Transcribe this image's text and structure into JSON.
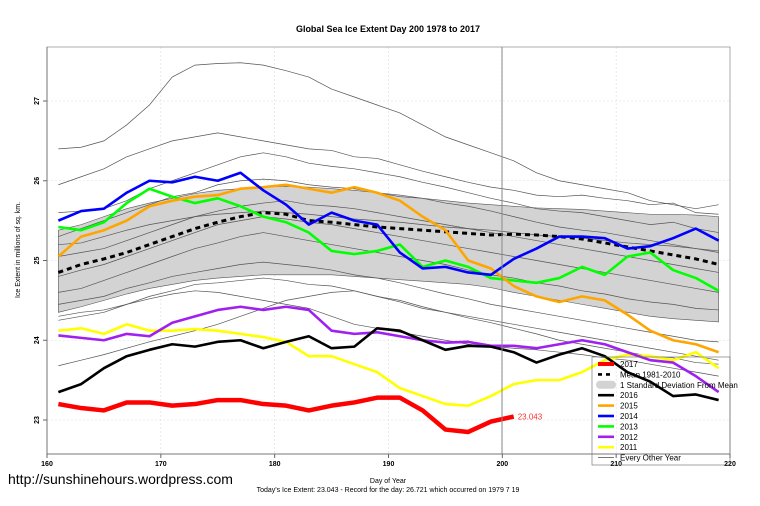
{
  "chart_data": {
    "type": "line",
    "title": "Global Sea Ice Extent Day 200 1978 to 2017",
    "xlabel": "Day of Year",
    "ylabel": "Ice Extent in millions of sq. km.",
    "subtitle": "Today's Ice Extent: 23.043  - Record for the day: 26.721 which occurred on 1979 7 19",
    "watermark": "http://sunshinehours.wordpress.com",
    "xlim": [
      160,
      220
    ],
    "ylim": [
      22.6,
      27.7
    ],
    "x_ticks": [
      "160",
      "170",
      "180",
      "190",
      "200",
      "210",
      "220"
    ],
    "y_ticks": [
      "23",
      "24",
      "25",
      "26",
      "27"
    ],
    "grid": true,
    "current_day_marker": 200,
    "last_value_label": "23.043",
    "legend_position": "bottom-right",
    "legend": [
      {
        "label": "2017",
        "color": "#ff0000",
        "style": "thick"
      },
      {
        "label": "Mean 1981-2010",
        "color": "#000000",
        "style": "dashed"
      },
      {
        "label": "1 Standard Deviation From Mean",
        "color": "#d3d3d3",
        "style": "band"
      },
      {
        "label": "2016",
        "color": "#000000",
        "style": "line"
      },
      {
        "label": "2015",
        "color": "#ffa500",
        "style": "line"
      },
      {
        "label": "2014",
        "color": "#0000ff",
        "style": "line"
      },
      {
        "label": "2013",
        "color": "#00ff00",
        "style": "line"
      },
      {
        "label": "2012",
        "color": "#a020f0",
        "style": "line"
      },
      {
        "label": "2011",
        "color": "#ffff00",
        "style": "line"
      },
      {
        "label": "Every Other Year",
        "color": "#555555",
        "style": "thin"
      }
    ],
    "x": [
      161,
      163,
      165,
      167,
      169,
      171,
      173,
      175,
      177,
      179,
      181,
      183,
      185,
      187,
      189,
      191,
      193,
      195,
      197,
      199,
      201,
      203,
      205,
      207,
      209,
      211,
      213,
      215,
      217,
      219
    ],
    "std_band": {
      "upper": [
        25.38,
        25.45,
        25.55,
        25.65,
        25.72,
        25.78,
        25.84,
        25.88,
        25.9,
        25.92,
        25.93,
        25.92,
        25.9,
        25.88,
        25.85,
        25.82,
        25.78,
        25.75,
        25.72,
        25.7,
        25.68,
        25.66,
        25.65,
        25.64,
        25.62,
        25.6,
        25.58,
        25.58,
        25.57,
        25.55
      ],
      "lower": [
        24.35,
        24.42,
        24.5,
        24.58,
        24.65,
        24.7,
        24.75,
        24.78,
        24.8,
        24.82,
        24.82,
        24.82,
        24.82,
        24.8,
        24.78,
        24.76,
        24.74,
        24.72,
        24.7,
        24.66,
        24.6,
        24.55,
        24.5,
        24.45,
        24.4,
        24.35,
        24.3,
        24.27,
        24.25,
        24.23
      ]
    },
    "series": [
      {
        "name": "Mean 1981-2010",
        "color": "#000000",
        "dash": true,
        "values": [
          24.85,
          24.95,
          25.02,
          25.1,
          25.2,
          25.3,
          25.4,
          25.48,
          25.55,
          25.6,
          25.58,
          25.5,
          25.48,
          25.45,
          25.42,
          25.4,
          25.38,
          25.36,
          25.34,
          25.32,
          25.33,
          25.32,
          25.3,
          25.27,
          25.22,
          25.17,
          25.12,
          25.07,
          25.02,
          24.95
        ]
      },
      {
        "name": "2011",
        "color": "#ffff00",
        "values": [
          24.12,
          24.15,
          24.08,
          24.2,
          24.12,
          24.12,
          24.14,
          24.12,
          24.08,
          24.04,
          23.98,
          23.8,
          23.8,
          23.7,
          23.6,
          23.4,
          23.3,
          23.2,
          23.18,
          23.3,
          23.45,
          23.5,
          23.5,
          23.6,
          23.75,
          23.82,
          23.8,
          23.75,
          23.85,
          23.65
        ]
      },
      {
        "name": "2012",
        "color": "#a020f0",
        "values": [
          24.06,
          24.03,
          24.0,
          24.08,
          24.05,
          24.22,
          24.3,
          24.38,
          24.42,
          24.38,
          24.42,
          24.38,
          24.12,
          24.08,
          24.1,
          24.05,
          24.0,
          23.97,
          23.98,
          23.93,
          23.93,
          23.9,
          23.95,
          24.0,
          23.95,
          23.85,
          23.75,
          23.72,
          23.55,
          23.35
        ]
      },
      {
        "name": "2013",
        "color": "#00ff00",
        "values": [
          25.42,
          25.38,
          25.48,
          25.72,
          25.9,
          25.8,
          25.72,
          25.78,
          25.68,
          25.55,
          25.48,
          25.35,
          25.12,
          25.08,
          25.12,
          25.2,
          24.92,
          25.0,
          24.92,
          24.78,
          24.75,
          24.72,
          24.78,
          24.92,
          24.82,
          25.05,
          25.1,
          24.88,
          24.78,
          24.62
        ]
      },
      {
        "name": "2014",
        "color": "#0000ff",
        "values": [
          25.5,
          25.62,
          25.65,
          25.85,
          26.0,
          25.98,
          26.05,
          26.0,
          26.1,
          25.88,
          25.7,
          25.45,
          25.6,
          25.5,
          25.45,
          25.1,
          24.9,
          24.92,
          24.85,
          24.82,
          25.02,
          25.15,
          25.3,
          25.3,
          25.28,
          25.15,
          25.18,
          25.28,
          25.4,
          25.25
        ]
      },
      {
        "name": "2015",
        "color": "#ffa500",
        "values": [
          25.05,
          25.3,
          25.38,
          25.5,
          25.68,
          25.75,
          25.8,
          25.82,
          25.9,
          25.92,
          25.95,
          25.9,
          25.85,
          25.92,
          25.85,
          25.75,
          25.55,
          25.38,
          25.0,
          24.9,
          24.68,
          24.55,
          24.48,
          24.55,
          24.5,
          24.32,
          24.12,
          24.0,
          23.95,
          23.85
        ]
      },
      {
        "name": "2016",
        "color": "#000000",
        "values": [
          23.35,
          23.45,
          23.65,
          23.8,
          23.88,
          23.95,
          23.92,
          23.98,
          24.0,
          23.9,
          23.98,
          24.05,
          23.9,
          23.92,
          24.15,
          24.12,
          24.0,
          23.88,
          23.93,
          23.92,
          23.85,
          23.72,
          23.82,
          23.9,
          23.8,
          23.6,
          23.48,
          23.3,
          23.32,
          23.25
        ]
      },
      {
        "name": "2017",
        "color": "#ff0000",
        "thick": true,
        "values": [
          23.2,
          23.15,
          23.12,
          23.22,
          23.22,
          23.18,
          23.2,
          23.25,
          23.25,
          23.2,
          23.18,
          23.12,
          23.18,
          23.22,
          23.28,
          23.28,
          23.12,
          22.88,
          22.85,
          22.98,
          23.043,
          null,
          null,
          null,
          null,
          null,
          null,
          null,
          null,
          null
        ]
      },
      {
        "name": "Every Other Year (a)",
        "color": "#555555",
        "thin": true,
        "values": [
          26.4,
          26.42,
          26.5,
          26.7,
          26.95,
          27.3,
          27.45,
          27.47,
          27.48,
          27.45,
          27.38,
          27.3,
          27.15,
          27.05,
          26.95,
          26.85,
          26.7,
          26.55,
          26.45,
          26.35,
          26.25,
          26.1,
          26.0,
          25.95,
          25.9,
          25.85,
          25.75,
          25.7,
          25.65,
          25.7
        ]
      },
      {
        "name": "Every Other Year (b)",
        "color": "#555555",
        "thin": true,
        "values": [
          25.95,
          26.05,
          26.15,
          26.3,
          26.4,
          26.5,
          26.55,
          26.6,
          26.55,
          26.5,
          26.45,
          26.4,
          26.38,
          26.3,
          26.28,
          26.2,
          26.12,
          26.05,
          25.98,
          25.92,
          25.88,
          25.82,
          25.8,
          25.82,
          25.78,
          25.75,
          25.7,
          25.72,
          25.6,
          25.58
        ]
      },
      {
        "name": "Every Other Year (c)",
        "color": "#555555",
        "thin": true,
        "values": [
          25.6,
          25.62,
          25.65,
          25.75,
          25.9,
          26.0,
          26.1,
          26.2,
          26.3,
          26.35,
          26.3,
          26.22,
          26.18,
          26.15,
          26.1,
          26.05,
          25.98,
          25.92,
          25.85,
          25.78,
          25.72,
          25.65,
          25.62,
          25.6,
          25.55,
          25.5,
          25.45,
          25.48,
          25.4,
          25.35
        ]
      },
      {
        "name": "Every Other Year (d)",
        "color": "#555555",
        "thin": true,
        "values": [
          25.3,
          25.4,
          25.5,
          25.6,
          25.7,
          25.8,
          25.85,
          25.95,
          26.0,
          26.02,
          26.0,
          25.95,
          25.92,
          25.9,
          25.85,
          25.8,
          25.78,
          25.72,
          25.68,
          25.62,
          25.55,
          25.48,
          25.42,
          25.38,
          25.35,
          25.3,
          25.25,
          25.2,
          25.15,
          25.1
        ]
      },
      {
        "name": "Every Other Year (e)",
        "color": "#555555",
        "thin": true,
        "values": [
          25.05,
          25.1,
          25.15,
          25.25,
          25.35,
          25.45,
          25.55,
          25.62,
          25.68,
          25.72,
          25.75,
          25.7,
          25.68,
          25.65,
          25.6,
          25.55,
          25.5,
          25.45,
          25.4,
          25.35,
          25.3,
          25.25,
          25.2,
          25.15,
          25.1,
          25.05,
          25.0,
          24.95,
          24.9,
          24.85
        ]
      },
      {
        "name": "Every Other Year (f)",
        "color": "#555555",
        "thin": true,
        "values": [
          24.8,
          24.88,
          24.95,
          25.05,
          25.15,
          25.25,
          25.35,
          25.45,
          25.5,
          25.55,
          25.52,
          25.48,
          25.45,
          25.4,
          25.35,
          25.3,
          25.25,
          25.2,
          25.15,
          25.1,
          25.05,
          25.0,
          24.95,
          24.9,
          24.85,
          24.8,
          24.75,
          24.7,
          24.65,
          24.6
        ]
      },
      {
        "name": "Every Other Year (g)",
        "color": "#555555",
        "thin": true,
        "values": [
          24.6,
          24.65,
          24.75,
          24.85,
          24.95,
          25.05,
          25.15,
          25.22,
          25.3,
          25.35,
          25.3,
          25.25,
          25.2,
          25.15,
          25.1,
          25.05,
          25.0,
          24.95,
          24.88,
          24.82,
          24.78,
          24.72,
          24.68,
          24.62,
          24.58,
          24.52,
          24.48,
          24.45,
          24.4,
          24.38
        ]
      },
      {
        "name": "Every Other Year (h)",
        "color": "#555555",
        "thin": true,
        "values": [
          24.45,
          24.5,
          24.55,
          24.65,
          24.72,
          24.8,
          24.85,
          24.9,
          24.95,
          24.98,
          24.95,
          24.92,
          24.88,
          24.82,
          24.78,
          24.72,
          24.65,
          24.58,
          24.52,
          24.45,
          24.4,
          24.35,
          24.3,
          24.25,
          24.2,
          24.15,
          24.1,
          24.05,
          24.0,
          23.98
        ]
      },
      {
        "name": "Every Other Year (i)",
        "color": "#555555",
        "thin": true,
        "values": [
          24.25,
          24.3,
          24.35,
          24.45,
          24.55,
          24.62,
          24.7,
          24.72,
          24.75,
          24.78,
          24.75,
          24.7,
          24.68,
          24.62,
          24.55,
          24.5,
          24.42,
          24.35,
          24.3,
          24.25,
          24.2,
          24.15,
          24.1,
          24.05,
          24.0,
          23.95,
          23.9,
          23.85,
          23.8,
          23.75
        ]
      },
      {
        "name": "Every Other Year (j)",
        "color": "#555555",
        "thin": true,
        "values": [
          23.68,
          23.75,
          23.82,
          23.9,
          23.98,
          24.05,
          24.12,
          24.2,
          24.3,
          24.4,
          24.5,
          24.55,
          24.6,
          24.62,
          24.55,
          24.48,
          24.4,
          24.35,
          24.28,
          24.22,
          24.15,
          24.08,
          24.0,
          23.95,
          23.9,
          23.85,
          23.8,
          23.78,
          23.72,
          23.7
        ]
      },
      {
        "name": "Every Other Year (k)",
        "color": "#555555",
        "thin": true,
        "values": [
          24.3,
          24.35,
          24.38,
          24.45,
          24.52,
          24.58,
          24.62,
          24.6,
          24.55,
          24.5,
          24.45,
          24.4,
          24.3,
          24.2,
          24.15,
          24.1,
          24.05,
          24.0,
          23.95,
          23.92,
          23.9,
          23.88,
          23.85,
          23.82,
          23.78,
          23.75,
          23.7,
          23.65,
          23.6,
          23.55
        ]
      },
      {
        "name": "Every Other Year (l)",
        "color": "#555555",
        "thin": true,
        "values": [
          25.2,
          25.22,
          25.3,
          25.38,
          25.45,
          25.5,
          25.55,
          25.58,
          25.6,
          25.62,
          25.6,
          25.58,
          25.55,
          25.52,
          25.5,
          25.48,
          25.45,
          25.42,
          25.4,
          25.38,
          25.35,
          25.32,
          25.3,
          25.28,
          25.25,
          25.22,
          25.2,
          25.18,
          25.15,
          25.12
        ]
      }
    ]
  }
}
